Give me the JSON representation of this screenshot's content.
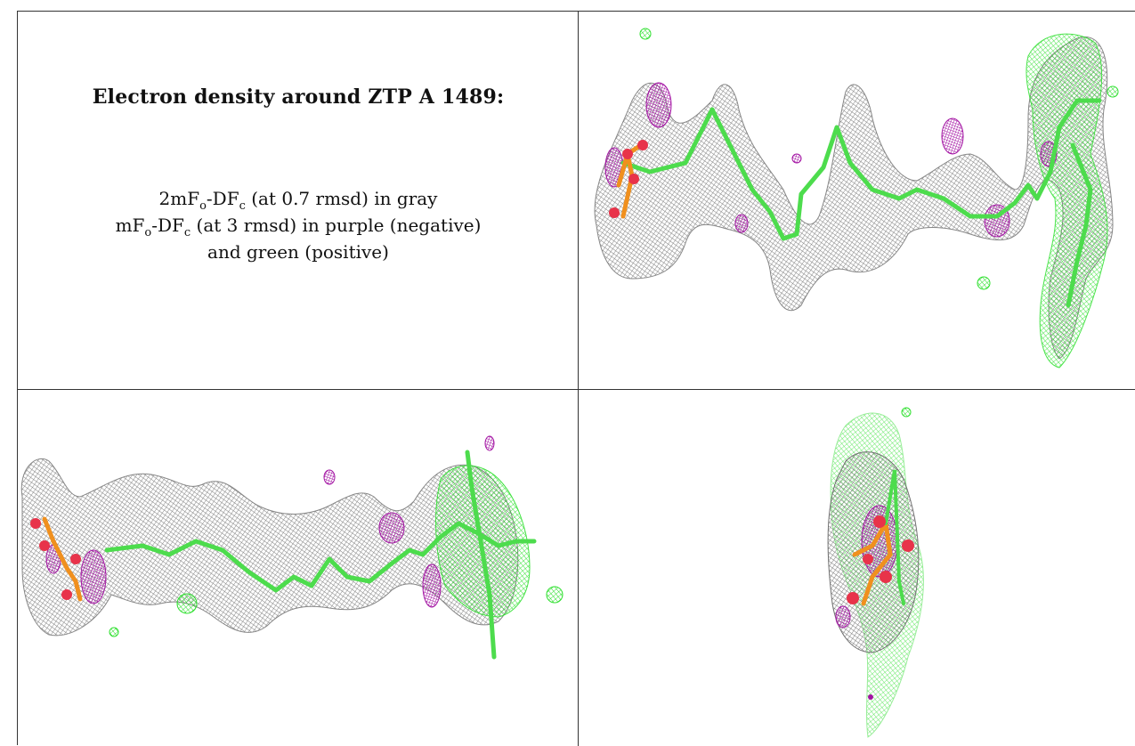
{
  "panel_title": "Electron density around ZTP A 1489:",
  "legend": {
    "line1": {
      "a": "2mF",
      "a_sub": "o",
      "b": "-DF",
      "b_sub": "c",
      "rest": " (at 0.7 rmsd) in gray"
    },
    "line2": {
      "a": "mF",
      "a_sub": "o",
      "b": "-DF",
      "b_sub": "c",
      "rest": " (at 3 rmsd) in purple (negative)"
    },
    "line3": "and green (positive)"
  },
  "colors": {
    "mesh_gray": "#8a8a8a",
    "mesh_purple": "#b01fb0",
    "mesh_green": "#33e633",
    "stick_green": "#4ddc4d",
    "stick_orange": "#f0901e",
    "atom_red": "#e8334a"
  }
}
